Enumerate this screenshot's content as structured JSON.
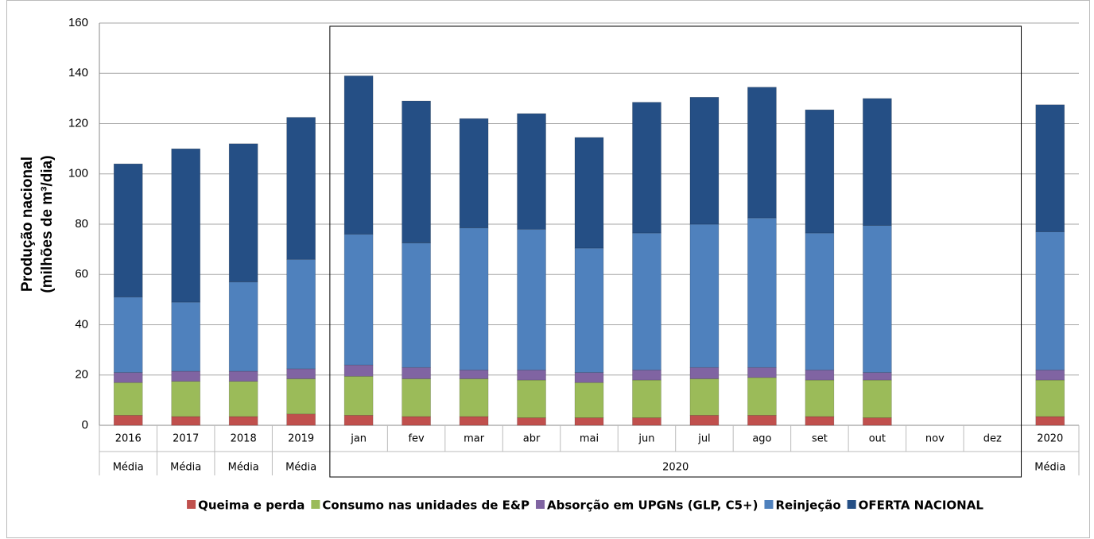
{
  "chart_data": {
    "type": "stacked-bar",
    "ylabel": [
      "Produção nacional",
      "(milhões de m³/dia)"
    ],
    "groups": [
      {
        "label": "Média",
        "categories": [
          "2016"
        ]
      },
      {
        "label": "Média",
        "categories": [
          "2017"
        ]
      },
      {
        "label": "Média",
        "categories": [
          "2018"
        ]
      },
      {
        "label": "Média",
        "categories": [
          "2019"
        ]
      },
      {
        "label": "2020",
        "categories": [
          "jan",
          "fev",
          "mar",
          "abr",
          "mai",
          "jun",
          "jul",
          "ago",
          "set",
          "out",
          "nov",
          "dez"
        ]
      },
      {
        "label": "Média",
        "categories": [
          "2020"
        ]
      }
    ],
    "series": [
      {
        "name": "Queima e perda",
        "color": "#c0504d",
        "values": [
          4,
          3.5,
          3.5,
          4.5,
          4,
          3.5,
          3.5,
          3,
          3,
          3,
          4,
          4,
          3.5,
          3,
          null,
          null,
          3.5
        ]
      },
      {
        "name": "Consumo nas unidades de E&P",
        "color": "#9bbb59",
        "values": [
          13,
          14,
          14,
          14,
          15.5,
          15,
          15,
          15,
          14,
          15,
          14.5,
          15,
          14.5,
          15,
          null,
          null,
          14.5
        ]
      },
      {
        "name": "Absorção em UPGNs (GLP, C5+)",
        "color": "#8064a2",
        "values": [
          4,
          4,
          4,
          4,
          4.5,
          4.5,
          3.5,
          4,
          4,
          4,
          4.5,
          4,
          4,
          3,
          null,
          null,
          4
        ]
      },
      {
        "name": "Reinjeção",
        "color": "#4f81bd",
        "values": [
          30,
          27.5,
          35.5,
          43.5,
          52,
          49.5,
          56.5,
          56,
          49.5,
          54.5,
          57,
          59.5,
          54.5,
          58.5,
          null,
          null,
          55
        ]
      },
      {
        "name": "OFERTA NACIONAL",
        "color": "#254f85",
        "values": [
          53,
          61,
          55,
          56.5,
          63,
          56.5,
          43.5,
          46,
          44,
          52,
          50.5,
          52,
          49,
          50.5,
          null,
          null,
          50.5
        ]
      }
    ],
    "ylim": [
      0,
      160
    ],
    "yticks": [
      0,
      20,
      40,
      60,
      80,
      100,
      120,
      140,
      160
    ],
    "grid": true
  }
}
